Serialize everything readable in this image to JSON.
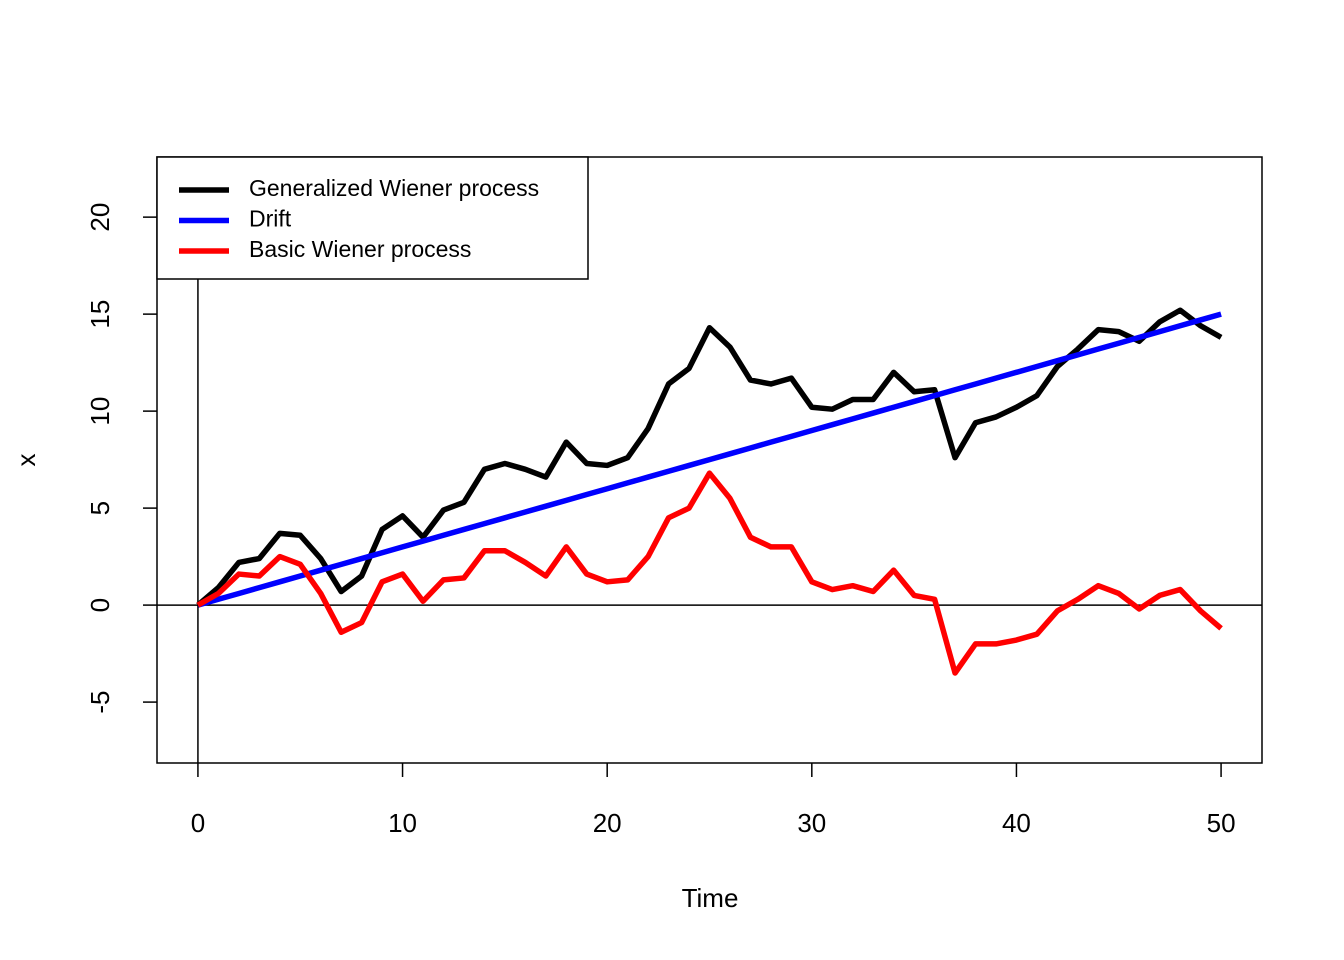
{
  "chart_data": {
    "type": "line",
    "x_label": "Time",
    "y_label": "x",
    "x": [
      0,
      1,
      2,
      3,
      4,
      5,
      6,
      7,
      8,
      9,
      10,
      11,
      12,
      13,
      14,
      15,
      16,
      17,
      18,
      19,
      20,
      21,
      22,
      23,
      24,
      25,
      26,
      27,
      28,
      29,
      30,
      31,
      32,
      33,
      34,
      35,
      36,
      37,
      38,
      39,
      40,
      41,
      42,
      43,
      44,
      45,
      46,
      47,
      48,
      49,
      50
    ],
    "series": [
      {
        "name": "Generalized Wiener process",
        "color": "#000000",
        "values": [
          0,
          0.9,
          2.2,
          2.4,
          3.7,
          3.6,
          2.4,
          0.7,
          1.5,
          3.9,
          4.6,
          3.5,
          4.9,
          5.3,
          7.0,
          7.3,
          7.0,
          6.6,
          8.4,
          7.3,
          7.2,
          7.6,
          9.1,
          11.4,
          12.2,
          14.3,
          13.3,
          11.6,
          11.4,
          11.7,
          10.2,
          10.1,
          10.6,
          10.6,
          12.0,
          11.0,
          11.1,
          7.6,
          9.4,
          9.7,
          10.2,
          10.8,
          12.3,
          13.2,
          14.2,
          14.1,
          13.6,
          14.6,
          15.2,
          14.4,
          13.8
        ]
      },
      {
        "name": "Drift",
        "color": "#0000ff",
        "values": [
          0,
          0.3,
          0.6,
          0.9,
          1.2,
          1.5,
          1.8,
          2.1,
          2.4,
          2.7,
          3.0,
          3.3,
          3.6,
          3.9,
          4.2,
          4.5,
          4.8,
          5.1,
          5.4,
          5.7,
          6.0,
          6.3,
          6.6,
          6.9,
          7.2,
          7.5,
          7.8,
          8.1,
          8.4,
          8.7,
          9.0,
          9.3,
          9.6,
          9.9,
          10.2,
          10.5,
          10.8,
          11.1,
          11.4,
          11.7,
          12.0,
          12.3,
          12.6,
          12.9,
          13.2,
          13.5,
          13.8,
          14.1,
          14.4,
          14.7,
          15.0
        ]
      },
      {
        "name": "Basic Wiener process",
        "color": "#ff0000",
        "values": [
          0,
          0.6,
          1.6,
          1.5,
          2.5,
          2.1,
          0.6,
          -1.4,
          -0.9,
          1.2,
          1.6,
          0.2,
          1.3,
          1.4,
          2.8,
          2.8,
          2.2,
          1.5,
          3.0,
          1.6,
          1.2,
          1.3,
          2.5,
          4.5,
          5.0,
          6.8,
          5.5,
          3.5,
          3.0,
          3.0,
          1.2,
          0.8,
          1.0,
          0.7,
          1.8,
          0.5,
          0.3,
          -3.5,
          -2.0,
          -2.0,
          -1.8,
          -1.5,
          -0.3,
          0.3,
          1.0,
          0.6,
          -0.2,
          0.5,
          0.8,
          -0.3,
          -1.2
        ]
      }
    ],
    "xlim": [
      -2,
      52
    ],
    "ylim": [
      -8.14,
      23.1
    ],
    "xticks": [
      0,
      10,
      20,
      30,
      40,
      50
    ],
    "yticks": [
      -5,
      0,
      5,
      10,
      15,
      20
    ],
    "hline": 0,
    "vline": 0,
    "legend": "top-left"
  }
}
